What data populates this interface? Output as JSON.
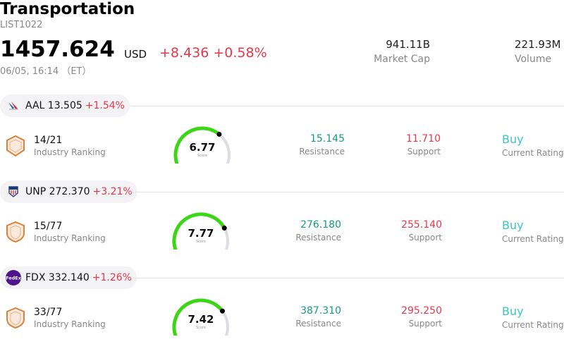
{
  "header": {
    "title": "Transportation",
    "code": "LIST1022",
    "price": "1457.624",
    "currency": "USD",
    "change": "+8.436 +0.58%",
    "timestamp": "06/05, 16:14 （ET）",
    "market_cap_value": "941.11B",
    "market_cap_label": "Market Cap",
    "volume_value": "221.93M",
    "volume_label": "Volume"
  },
  "stocks": [
    {
      "ticker_price": "AAL 13.505",
      "pct": "+1.54%",
      "logo": "american-airlines-logo-icon",
      "rank": "14/21",
      "rank_label": "Industry Ranking",
      "score": "6.77",
      "score_value": 6.77,
      "score_label": "Score",
      "resistance": "15.145",
      "resistance_label": "Resistance",
      "support": "11.710",
      "support_label": "Support",
      "rating": "Buy",
      "rating_label": "Current Rating"
    },
    {
      "ticker_price": "UNP 272.370",
      "pct": "+3.21%",
      "logo": "union-pacific-logo-icon",
      "rank": "15/77",
      "rank_label": "Industry Ranking",
      "score": "7.77",
      "score_value": 7.77,
      "score_label": "Score",
      "resistance": "276.180",
      "resistance_label": "Resistance",
      "support": "255.140",
      "support_label": "Support",
      "rating": "Buy",
      "rating_label": "Current Rating"
    },
    {
      "ticker_price": "FDX 332.140",
      "pct": "+1.26%",
      "logo": "fedex-logo-icon",
      "logo_text": "FedEx",
      "rank": "33/77",
      "rank_label": "Industry Ranking",
      "score": "7.42",
      "score_value": 7.42,
      "score_label": "Score",
      "resistance": "387.310",
      "resistance_label": "Resistance",
      "support": "295.250",
      "support_label": "Support",
      "rating": "Buy",
      "rating_label": "Current Rating"
    }
  ],
  "colors": {
    "up": "#e8374a",
    "resistance": "#129c82",
    "rating": "#3cc4c8",
    "gauge_fill": "#3dd617",
    "gauge_track": "#dcdce2",
    "rank_shield": "#d9823c"
  }
}
